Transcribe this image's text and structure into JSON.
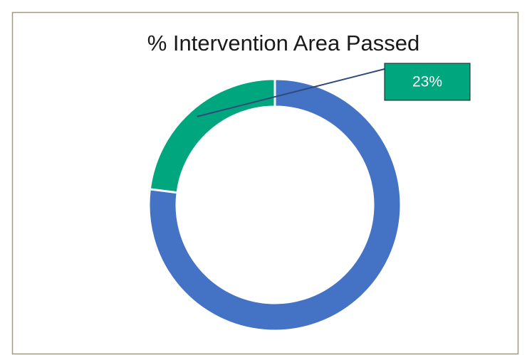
{
  "chart_data": {
    "type": "donut",
    "title": "% Intervention Area Passed",
    "categories": [
      null,
      null
    ],
    "values": [
      77,
      23
    ],
    "value_labels": [
      null,
      "23%"
    ],
    "colors": [
      "#4472c4",
      "#00a67e"
    ]
  }
}
